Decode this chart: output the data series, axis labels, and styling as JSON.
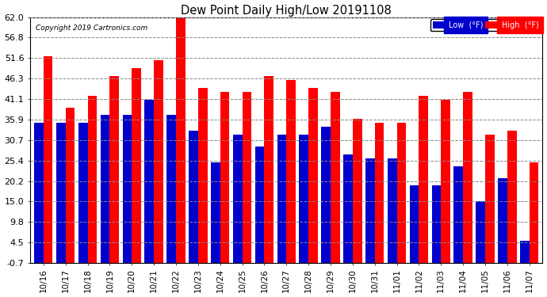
{
  "title": "Dew Point Daily High/Low 20191108",
  "copyright": "Copyright 2019 Cartronics.com",
  "labels": [
    "10/16",
    "10/17",
    "10/18",
    "10/19",
    "10/20",
    "10/21",
    "10/22",
    "10/23",
    "10/24",
    "10/25",
    "10/26",
    "10/27",
    "10/28",
    "10/29",
    "10/30",
    "10/31",
    "11/01",
    "11/02",
    "11/03",
    "11/04",
    "11/05",
    "11/06",
    "11/07"
  ],
  "high": [
    52,
    39,
    42,
    47,
    49,
    51,
    63,
    44,
    43,
    43,
    47,
    46,
    44,
    43,
    36,
    35,
    35,
    42,
    41,
    43,
    32,
    33,
    25
  ],
  "low": [
    35,
    35,
    35,
    37,
    37,
    41,
    37,
    33,
    25,
    32,
    29,
    32,
    32,
    34,
    27,
    26,
    26,
    19,
    19,
    24,
    15,
    21,
    5
  ],
  "ylim": [
    -0.7,
    62.0
  ],
  "yticks": [
    -0.7,
    4.5,
    9.8,
    15.0,
    20.2,
    25.4,
    30.7,
    35.9,
    41.1,
    46.3,
    51.6,
    56.8,
    62.0
  ],
  "ytick_labels": [
    "-0.7",
    "4.5",
    "9.8",
    "15.0",
    "20.2",
    "25.4",
    "30.7",
    "35.9",
    "41.1",
    "46.3",
    "51.6",
    "56.8",
    "62.0"
  ],
  "high_color": "#ff0000",
  "low_color": "#0000cc",
  "bg_color": "#ffffff",
  "grid_color": "#888888",
  "bar_width": 0.42,
  "legend_low_bg": "#0000cc",
  "legend_high_bg": "#ff0000"
}
